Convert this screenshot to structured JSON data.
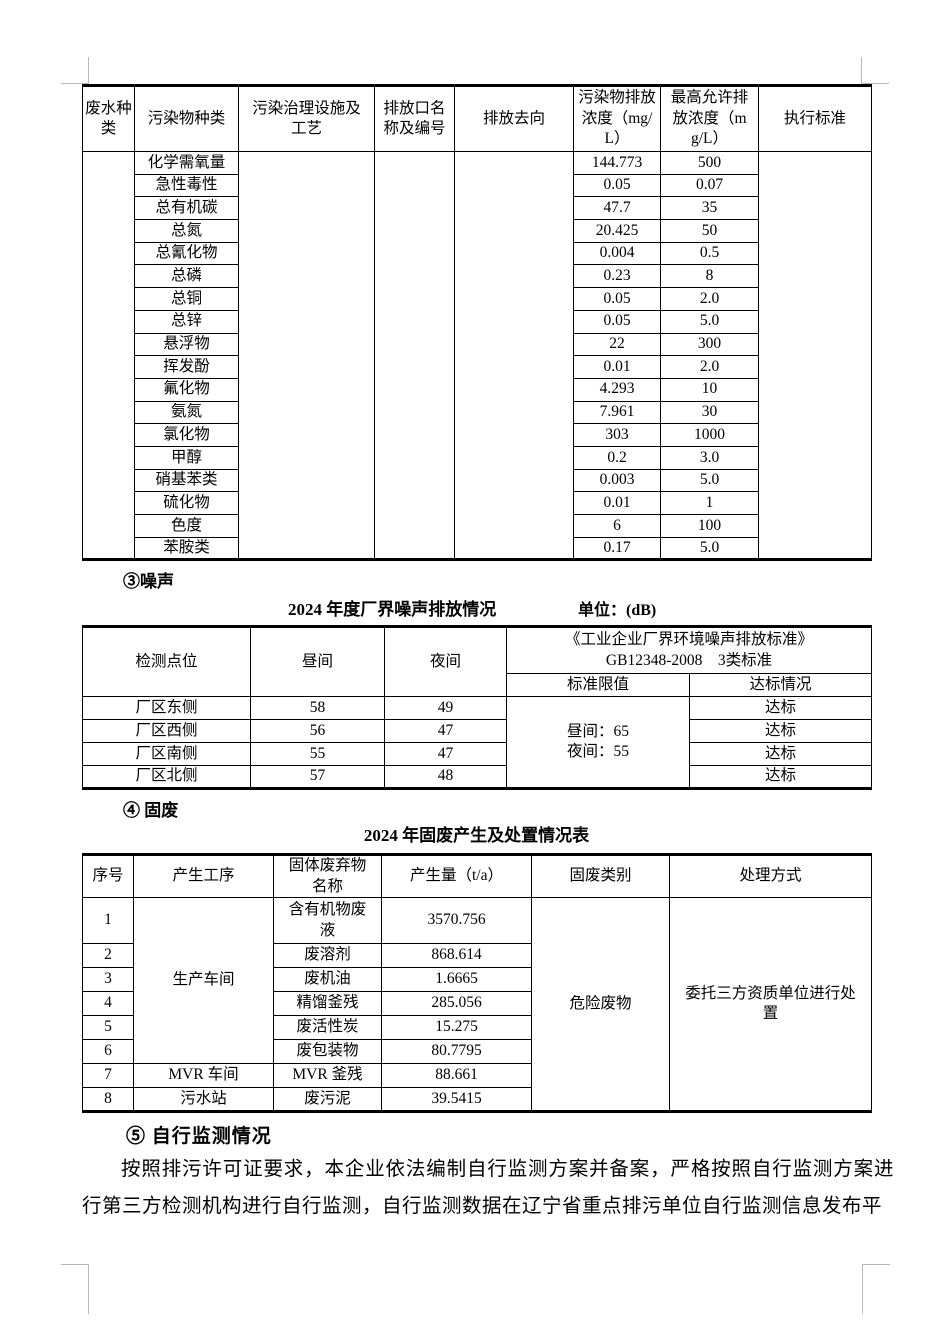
{
  "doc": {
    "wastewater": {
      "headers": [
        "废水种类",
        "污染物种类",
        "污染治理设施及工艺",
        "排放口名称及编号",
        "排放去向",
        "污染物排放浓度（mg/L）",
        "最高允许排放浓度（mg/L）",
        "执行标准"
      ],
      "rows": [
        {
          "pollutant": "化学需氧量",
          "concentration": "144.773",
          "max_allowed": "500"
        },
        {
          "pollutant": "急性毒性",
          "concentration": "0.05",
          "max_allowed": "0.07"
        },
        {
          "pollutant": "总有机碳",
          "concentration": "47.7",
          "max_allowed": "35"
        },
        {
          "pollutant": "总氮",
          "concentration": "20.425",
          "max_allowed": "50"
        },
        {
          "pollutant": "总氰化物",
          "concentration": "0.004",
          "max_allowed": "0.5"
        },
        {
          "pollutant": "总磷",
          "concentration": "0.23",
          "max_allowed": "8"
        },
        {
          "pollutant": "总铜",
          "concentration": "0.05",
          "max_allowed": "2.0"
        },
        {
          "pollutant": "总锌",
          "concentration": "0.05",
          "max_allowed": "5.0"
        },
        {
          "pollutant": "悬浮物",
          "concentration": "22",
          "max_allowed": "300"
        },
        {
          "pollutant": "挥发酚",
          "concentration": "0.01",
          "max_allowed": "2.0"
        },
        {
          "pollutant": "氟化物",
          "concentration": "4.293",
          "max_allowed": "10"
        },
        {
          "pollutant": "氨氮",
          "concentration": "7.961",
          "max_allowed": "30"
        },
        {
          "pollutant": "氯化物",
          "concentration": "303",
          "max_allowed": "1000"
        },
        {
          "pollutant": "甲醇",
          "concentration": "0.2",
          "max_allowed": "3.0"
        },
        {
          "pollutant": "硝基苯类",
          "concentration": "0.003",
          "max_allowed": "5.0"
        },
        {
          "pollutant": "硫化物",
          "concentration": "0.01",
          "max_allowed": "1"
        },
        {
          "pollutant": "色度",
          "concentration": "6",
          "max_allowed": "100"
        },
        {
          "pollutant": "苯胺类",
          "concentration": "0.17",
          "max_allowed": "5.0"
        }
      ]
    },
    "noise": {
      "section_label": "③噪声",
      "table_title": "2024 年度厂界噪声排放情况",
      "unit_label": "单位：(dB)",
      "col_point": "检测点位",
      "col_day": "昼间",
      "col_night": "夜间",
      "standard_line1": "《工业企业厂界环境噪声排放标准》",
      "standard_line2": "GB12348-2008　3类标准",
      "col_limit": "标准限值",
      "col_status": "达标情况",
      "limit_day": "昼间：65",
      "limit_night": "夜间：55",
      "rows": [
        {
          "point": "厂区东侧",
          "day": "58",
          "night": "49",
          "status": "达标"
        },
        {
          "point": "厂区西侧",
          "day": "56",
          "night": "47",
          "status": "达标"
        },
        {
          "point": "厂区南侧",
          "day": "55",
          "night": "47",
          "status": "达标"
        },
        {
          "point": "厂区北侧",
          "day": "57",
          "night": "48",
          "status": "达标"
        }
      ]
    },
    "solid_waste": {
      "section_label": "④ 固废",
      "table_title": "2024 年固废产生及处置情况表",
      "headers": [
        "序号",
        "产生工序",
        "固体废弃物名称",
        "产生量（t/a）",
        "固废类别",
        "处理方式"
      ],
      "category": "危险废物",
      "disposal": "委托三方资质单位进行处置",
      "rows": [
        {
          "no": "1",
          "process": "生产车间",
          "name": "含有机物废液",
          "amount": "3570.756"
        },
        {
          "no": "2",
          "process": "",
          "name": "废溶剂",
          "amount": "868.614"
        },
        {
          "no": "3",
          "process": "",
          "name": "废机油",
          "amount": "1.6665"
        },
        {
          "no": "4",
          "process": "",
          "name": "精馏釜残",
          "amount": "285.056"
        },
        {
          "no": "5",
          "process": "",
          "name": "废活性炭",
          "amount": "15.275"
        },
        {
          "no": "6",
          "process": "",
          "name": "废包装物",
          "amount": "80.7795"
        },
        {
          "no": "7",
          "process": "MVR 车间",
          "name": "MVR 釜残",
          "amount": "88.661"
        },
        {
          "no": "8",
          "process": "污水站",
          "name": "废污泥",
          "amount": "39.5415"
        }
      ]
    },
    "self_monitoring": {
      "section_label": "⑤ 自行监测情况",
      "paragraph": "按照排污许可证要求，本企业依法编制自行监测方案并备案，严格按照自行监测方案进行第三方检测机构进行自行监测，自行监测数据在辽宁省重点排污单位自行监测信息发布平"
    }
  }
}
